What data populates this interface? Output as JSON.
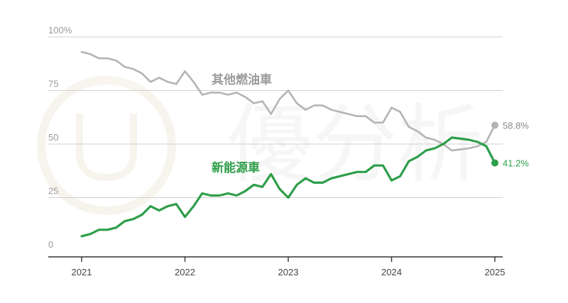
{
  "chart_data": {
    "type": "line",
    "title": "",
    "xlabel": "",
    "ylabel": "",
    "ylim": [
      0,
      100
    ],
    "y_ticks": [
      "100%",
      "75",
      "50",
      "25",
      "0"
    ],
    "y_tick_values": [
      100,
      75,
      50,
      25,
      0
    ],
    "x_ticks": [
      "2021",
      "2022",
      "2023",
      "2024",
      "2025"
    ],
    "x_tick_values": [
      2021,
      2022,
      2023,
      2024,
      2025
    ],
    "grid": true,
    "x": [
      2021.0,
      2021.083,
      2021.167,
      2021.25,
      2021.333,
      2021.417,
      2021.5,
      2021.583,
      2021.667,
      2021.75,
      2021.833,
      2021.917,
      2022.0,
      2022.083,
      2022.167,
      2022.25,
      2022.333,
      2022.417,
      2022.5,
      2022.583,
      2022.667,
      2022.75,
      2022.833,
      2022.917,
      2023.0,
      2023.083,
      2023.167,
      2023.25,
      2023.333,
      2023.417,
      2023.5,
      2023.583,
      2023.667,
      2023.75,
      2023.833,
      2023.917,
      2024.0,
      2024.083,
      2024.167,
      2024.25,
      2024.333,
      2024.417,
      2024.5,
      2024.583,
      2024.667,
      2024.75,
      2024.833,
      2024.917,
      2025.0
    ],
    "series": [
      {
        "name": "其他燃油車",
        "color": "#b4b4b4",
        "end_label": "58.8%",
        "values": [
          93,
          92,
          90,
          90,
          89,
          86,
          85,
          83,
          79,
          81,
          79,
          78,
          84,
          79,
          73,
          74,
          74,
          73,
          74,
          72,
          69,
          70,
          64,
          71,
          75,
          69,
          66,
          68,
          68,
          66,
          65,
          64,
          63,
          63,
          60,
          60,
          67,
          65,
          58,
          56,
          53,
          52,
          50,
          47,
          47.5,
          48,
          49,
          51,
          58.8
        ]
      },
      {
        "name": "新能源車",
        "color": "#2e9e4a",
        "end_label": "41.2%",
        "values": [
          7,
          8,
          10,
          10,
          11,
          14,
          15,
          17,
          21,
          19,
          21,
          22,
          16,
          21,
          27,
          26,
          26,
          27,
          26,
          28,
          31,
          30,
          36,
          29,
          25,
          31,
          34,
          32,
          32,
          34,
          35,
          36,
          37,
          37,
          40,
          40,
          33,
          35,
          42,
          44,
          47,
          48,
          50,
          53,
          52.5,
          52,
          51,
          49,
          41.2
        ]
      }
    ]
  },
  "watermark": {
    "text": "優分析",
    "color": "#ececec"
  }
}
